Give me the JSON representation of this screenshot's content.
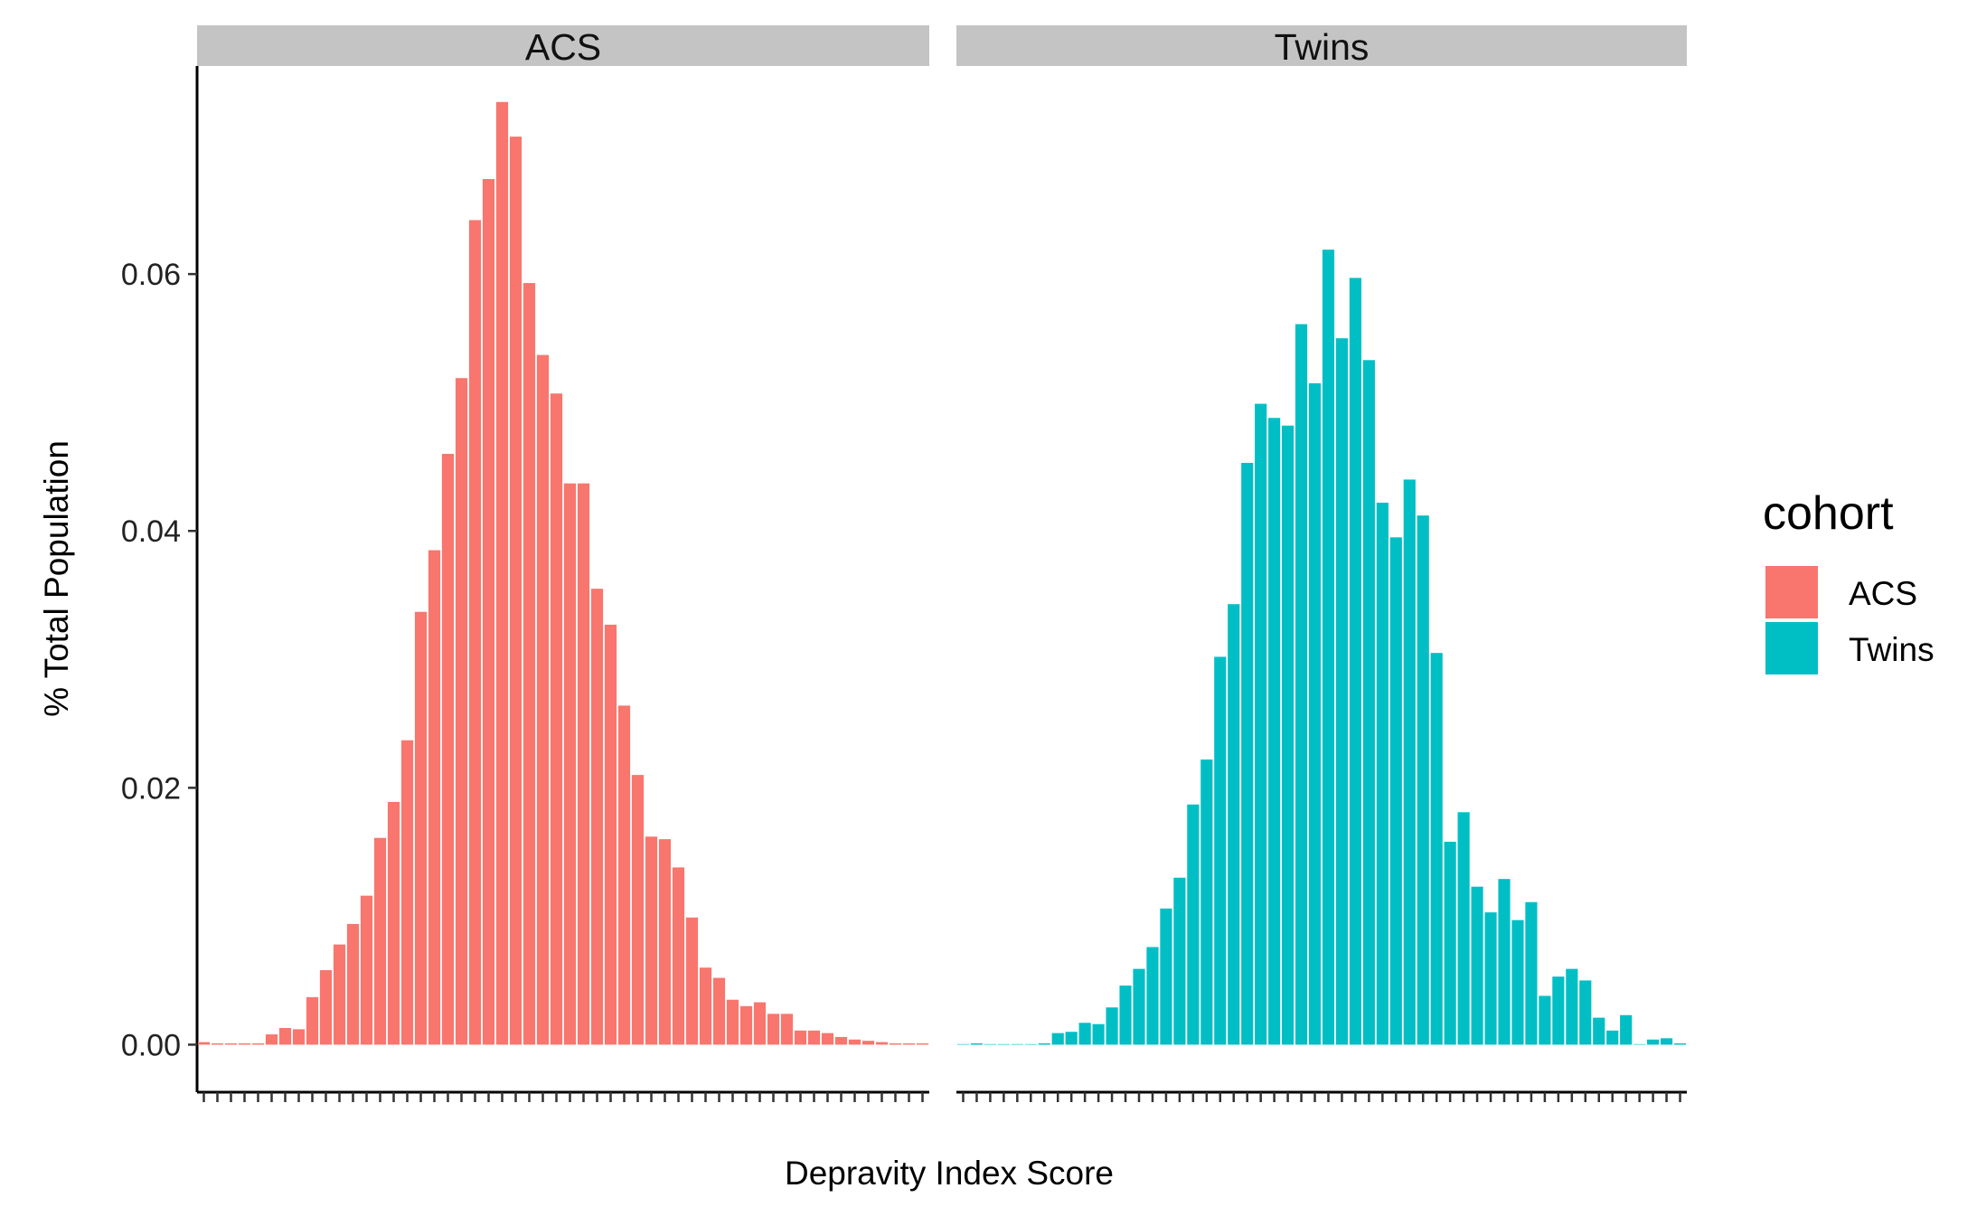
{
  "chart_data": {
    "type": "bar",
    "xlabel": "Depravity Index Score",
    "ylabel": "% Total Population",
    "ylim": [
      -0.0037,
      0.0762
    ],
    "y_ticks": [
      0.0,
      0.02,
      0.04,
      0.06
    ],
    "y_tick_labels": [
      "0.00",
      "0.02",
      "0.04",
      "0.06"
    ],
    "grid": false,
    "legend": {
      "title": "cohort",
      "placement": "right",
      "entries": [
        {
          "label": "ACS",
          "color": "#F8766D"
        },
        {
          "label": "Twins",
          "color": "#00BFC4"
        }
      ]
    },
    "colors": {
      "ACS": "#F8766D",
      "Twins": "#00BFC4",
      "strip": "#C4C4C4"
    },
    "panels": [
      {
        "name": "ACS",
        "color": "#F8766D",
        "values": [
          0.0002,
          0.0001,
          0.0001,
          0.0001,
          0.0001,
          0.0008,
          0.0013,
          0.0012,
          0.0037,
          0.0058,
          0.0078,
          0.0094,
          0.0116,
          0.0161,
          0.0189,
          0.0237,
          0.0337,
          0.0385,
          0.046,
          0.0519,
          0.0642,
          0.0674,
          0.0734,
          0.0707,
          0.0593,
          0.0537,
          0.0507,
          0.0437,
          0.0437,
          0.0355,
          0.0327,
          0.0264,
          0.021,
          0.0162,
          0.016,
          0.0138,
          0.0099,
          0.006,
          0.0052,
          0.0035,
          0.003,
          0.0033,
          0.0024,
          0.0024,
          0.0011,
          0.0011,
          0.0009,
          0.0006,
          0.0004,
          0.0003,
          0.0002,
          0.0001,
          0.0001,
          0.0001
        ]
      },
      {
        "name": "Twins",
        "color": "#00BFC4",
        "values": [
          0.0,
          0.0001,
          0.0,
          0.0,
          0.0,
          0.0,
          0.0001,
          0.0009,
          0.001,
          0.0017,
          0.0016,
          0.0029,
          0.0046,
          0.0059,
          0.0076,
          0.0106,
          0.013,
          0.0187,
          0.0222,
          0.0302,
          0.0343,
          0.0453,
          0.0499,
          0.0488,
          0.0482,
          0.0561,
          0.0515,
          0.0619,
          0.055,
          0.0597,
          0.0533,
          0.0422,
          0.0395,
          0.044,
          0.0412,
          0.0305,
          0.0158,
          0.0181,
          0.0123,
          0.0103,
          0.0129,
          0.0097,
          0.0111,
          0.0038,
          0.0053,
          0.0059,
          0.005,
          0.0021,
          0.0011,
          0.0023,
          0.0,
          0.0004,
          0.0005,
          0.0001
        ]
      }
    ]
  }
}
